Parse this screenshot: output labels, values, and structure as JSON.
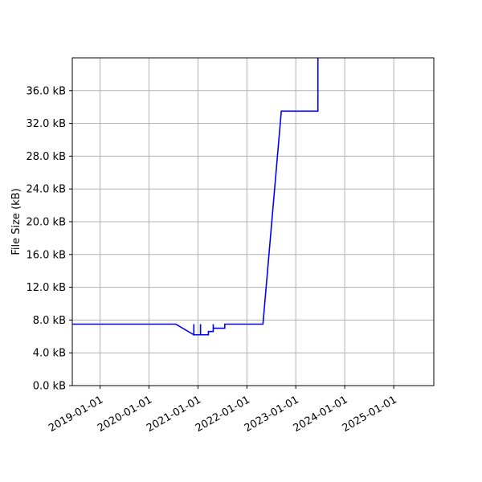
{
  "chart_data": {
    "type": "line",
    "title": "",
    "xlabel": "",
    "ylabel": "File Size (kB)",
    "ylim": [
      0,
      40
    ],
    "xlim": [
      "2018-06-08",
      "2025-10-27"
    ],
    "grid": true,
    "legend": "none",
    "colors": {
      "line": "#0000ff",
      "grid": "#b0b0b0",
      "axes": "#000000"
    },
    "y_ticks": [
      {
        "value": 0,
        "label": "0.0 kB"
      },
      {
        "value": 4,
        "label": "4.0 kB"
      },
      {
        "value": 8,
        "label": "8.0 kB"
      },
      {
        "value": 12,
        "label": "12.0 kB"
      },
      {
        "value": 16,
        "label": "16.0 kB"
      },
      {
        "value": 20,
        "label": "20.0 kB"
      },
      {
        "value": 24,
        "label": "24.0 kB"
      },
      {
        "value": 28,
        "label": "28.0 kB"
      },
      {
        "value": 32,
        "label": "32.0 kB"
      },
      {
        "value": 36,
        "label": "36.0 kB"
      }
    ],
    "x_ticks": [
      {
        "value": "2019-01-01",
        "label": "2019-01-01"
      },
      {
        "value": "2020-01-01",
        "label": "2020-01-01"
      },
      {
        "value": "2021-01-01",
        "label": "2021-01-01"
      },
      {
        "value": "2022-01-01",
        "label": "2022-01-01"
      },
      {
        "value": "2023-01-01",
        "label": "2023-01-01"
      },
      {
        "value": "2024-01-01",
        "label": "2024-01-01"
      },
      {
        "value": "2025-01-01",
        "label": "2025-01-01"
      }
    ],
    "series": [
      {
        "points": [
          {
            "x": "2018-06-08",
            "y": 7.5
          },
          {
            "x": "2020-07-20",
            "y": 7.5
          },
          {
            "x": "2020-12-01",
            "y": 6.2
          },
          {
            "x": "2020-12-01",
            "y": 7.5
          },
          {
            "x": "2020-12-01",
            "y": 6.2
          },
          {
            "x": "2021-01-20",
            "y": 6.2
          },
          {
            "x": "2021-01-20",
            "y": 7.5
          },
          {
            "x": "2021-01-20",
            "y": 6.2
          },
          {
            "x": "2021-03-20",
            "y": 6.2
          },
          {
            "x": "2021-03-20",
            "y": 6.6
          },
          {
            "x": "2021-04-25",
            "y": 6.6
          },
          {
            "x": "2021-04-25",
            "y": 7.5
          },
          {
            "x": "2021-04-25",
            "y": 7.0
          },
          {
            "x": "2021-07-20",
            "y": 7.0
          },
          {
            "x": "2021-07-20",
            "y": 7.5
          },
          {
            "x": "2022-05-01",
            "y": 7.5
          },
          {
            "x": "2022-09-15",
            "y": 33.5
          },
          {
            "x": "2023-06-15",
            "y": 33.5
          },
          {
            "x": "2023-06-15",
            "y": 40
          }
        ]
      }
    ]
  }
}
